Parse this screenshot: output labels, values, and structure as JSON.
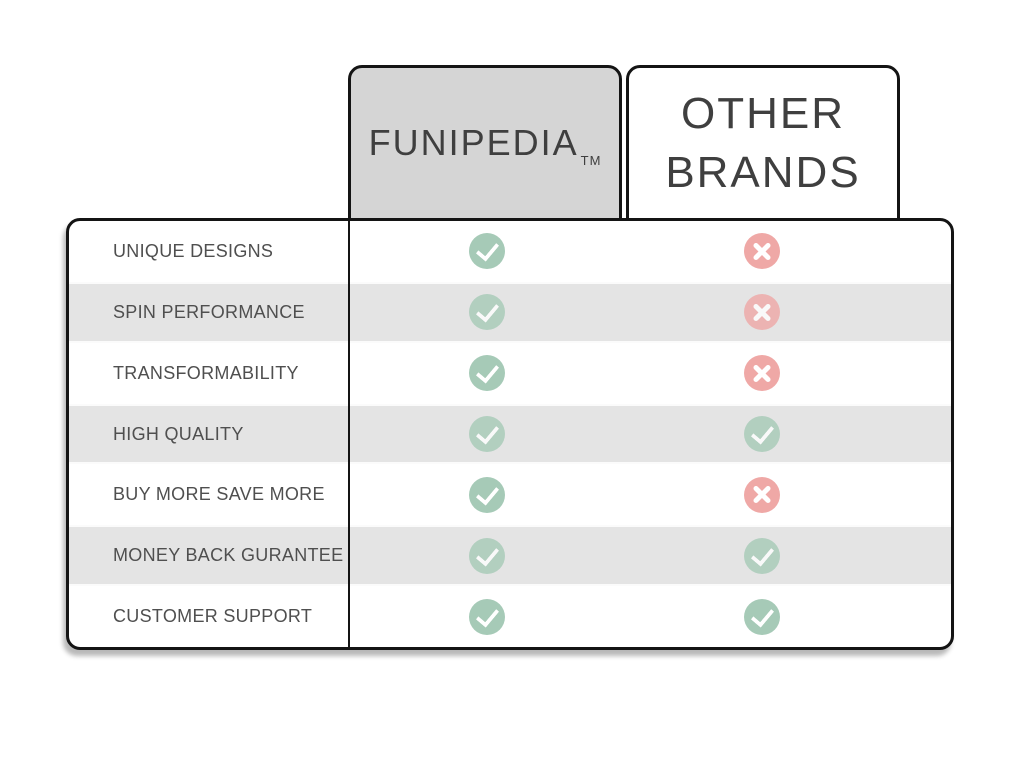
{
  "header": {
    "funipedia": {
      "label": "FUNIPEDIA",
      "trademark": "TM"
    },
    "other_brands": {
      "label": "OTHER BRANDS"
    }
  },
  "table": {
    "rows": [
      {
        "feature": "UNIQUE DESIGNS",
        "funipedia": "check",
        "other_brands": "cross"
      },
      {
        "feature": "SPIN PERFORMANCE",
        "funipedia": "check",
        "other_brands": "cross"
      },
      {
        "feature": "TRANSFORMABILITY",
        "funipedia": "check",
        "other_brands": "cross"
      },
      {
        "feature": "HIGH QUALITY",
        "funipedia": "check",
        "other_brands": "check"
      },
      {
        "feature": "BUY MORE SAVE MORE",
        "funipedia": "check",
        "other_brands": "cross"
      },
      {
        "feature": "MONEY BACK GURANTEE",
        "funipedia": "check",
        "other_brands": "check"
      },
      {
        "feature": "CUSTOMER SUPPORT",
        "funipedia": "check",
        "other_brands": "check"
      }
    ]
  },
  "chart_data": {
    "type": "table",
    "title": "FUNIPEDIA vs OTHER BRANDS comparison",
    "columns": [
      "FUNIPEDIA™",
      "OTHER BRANDS"
    ],
    "row_labels": [
      "UNIQUE DESIGNS",
      "SPIN PERFORMANCE",
      "TRANSFORMABILITY",
      "HIGH QUALITY",
      "BUY MORE SAVE MORE",
      "MONEY BACK GURANTEE",
      "CUSTOMER SUPPORT"
    ],
    "values": [
      [
        "check",
        "cross"
      ],
      [
        "check",
        "cross"
      ],
      [
        "check",
        "cross"
      ],
      [
        "check",
        "check"
      ],
      [
        "check",
        "cross"
      ],
      [
        "check",
        "check"
      ],
      [
        "check",
        "check"
      ]
    ],
    "legend_position": "none",
    "grid": "alternating-row-shading"
  },
  "colors": {
    "check_green": "#a6cab7",
    "cross_pink": "#efa8a6",
    "row_shade": "#e4e4e4",
    "header_box_gray": "#d5d5d5",
    "border_black": "#141414",
    "text_dark": "#3f3f3f",
    "label_gray": "#4f4f4f"
  }
}
